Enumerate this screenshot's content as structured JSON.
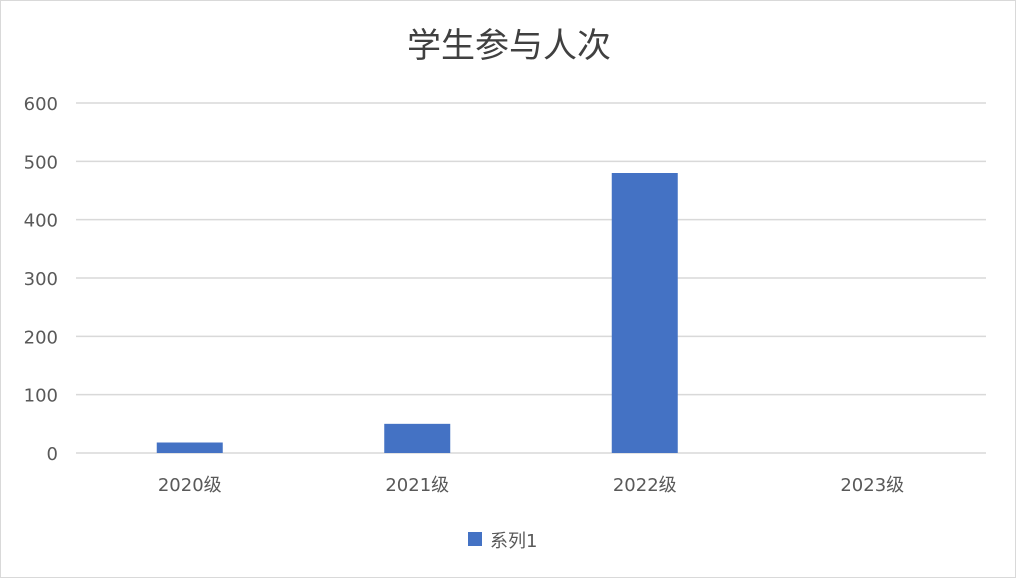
{
  "chart_data": {
    "type": "bar",
    "title": "学生参与人次",
    "xlabel": "",
    "ylabel": "",
    "categories": [
      "2020级",
      "2021级",
      "2022级",
      "2023级"
    ],
    "series": [
      {
        "name": "系列1",
        "values": [
          18,
          50,
          480,
          0
        ],
        "color": "#4472c4"
      }
    ],
    "ylim": [
      0,
      600
    ],
    "yticks": [
      0,
      100,
      200,
      300,
      400,
      500,
      600
    ],
    "grid": true,
    "gridColor": "#d9d9d9",
    "legend": "bottom"
  }
}
